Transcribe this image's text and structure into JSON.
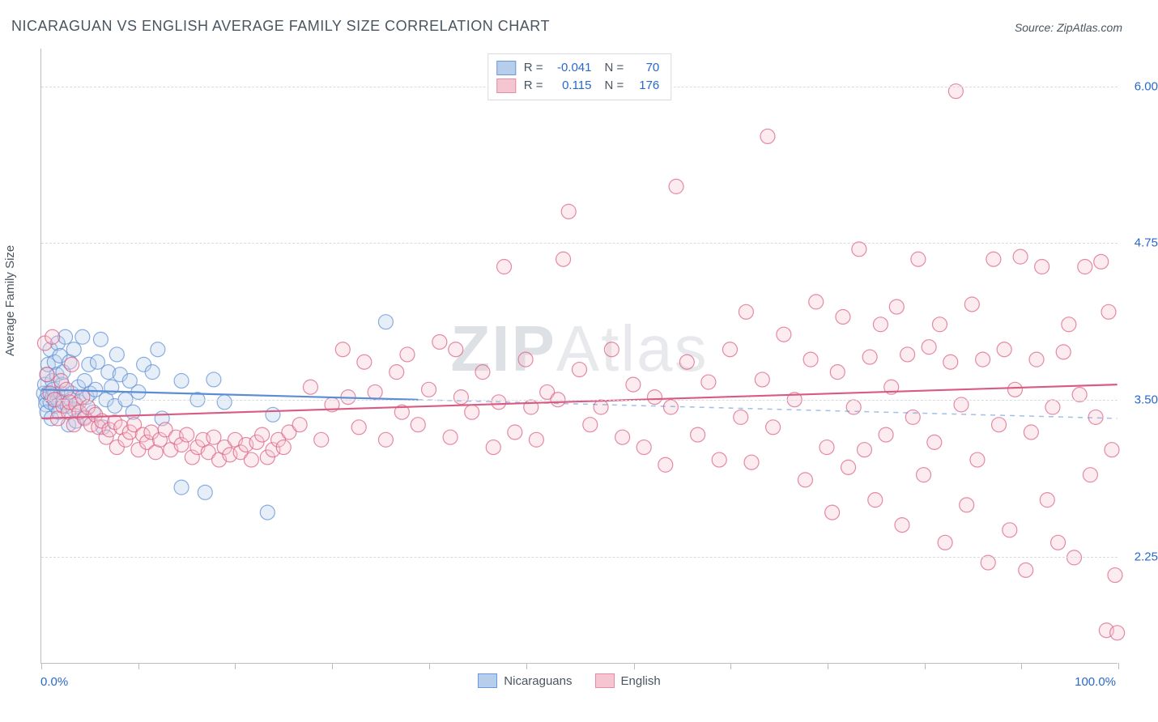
{
  "title": "NICARAGUAN VS ENGLISH AVERAGE FAMILY SIZE CORRELATION CHART",
  "source_prefix": "Source: ",
  "source_name": "ZipAtlas.com",
  "watermark": "ZIPAtlas",
  "yaxis_title": "Average Family Size",
  "x_axis": {
    "min_label": "0.0%",
    "max_label": "100.0%",
    "domain": [
      0,
      100
    ],
    "tick_positions_pct": [
      0,
      9,
      18,
      27,
      36,
      45,
      55,
      64,
      73,
      82,
      91,
      100
    ]
  },
  "y_axis": {
    "domain": [
      1.4,
      6.3
    ],
    "grid_values": [
      2.25,
      3.5,
      4.75,
      6.0
    ],
    "tick_labels": [
      "2.25",
      "3.50",
      "4.75",
      "6.00"
    ]
  },
  "legend_top": {
    "rows": [
      {
        "swatch_fill": "#b6cdec",
        "swatch_stroke": "#6a9add",
        "r_label": "R =",
        "r_value": "-0.041",
        "n_label": "N =",
        "n_value": "70"
      },
      {
        "swatch_fill": "#f5c5d2",
        "swatch_stroke": "#e88ba3",
        "r_label": "R =",
        "r_value": "0.115",
        "n_label": "N =",
        "n_value": "176"
      }
    ]
  },
  "bottom_legend": {
    "items": [
      {
        "swatch_fill": "#b6cdec",
        "swatch_stroke": "#6a9add",
        "label": "Nicaraguans"
      },
      {
        "swatch_fill": "#f5c5d2",
        "swatch_stroke": "#e88ba3",
        "label": "English"
      }
    ]
  },
  "chart": {
    "type": "scatter-correlation",
    "background_color": "#ffffff",
    "grid_color": "#d8dcdf",
    "axis_color": "#b8bec4",
    "marker_radius": 9,
    "marker_fill_opacity": 0.35,
    "marker_stroke_opacity": 0.7,
    "marker_stroke_width": 1.2,
    "trend_line_width": 2.2,
    "dash_pattern": "6,6",
    "series": [
      {
        "name": "Nicaraguans",
        "color": "#5b8dd6",
        "fill": "#b6cdec",
        "trend": {
          "y_at_xmin": 3.58,
          "y_at_xmax": 3.35,
          "solid_until_x": 35
        },
        "points": [
          [
            0.2,
            3.55
          ],
          [
            0.3,
            3.62
          ],
          [
            0.4,
            3.5
          ],
          [
            0.4,
            3.46
          ],
          [
            0.5,
            3.7
          ],
          [
            0.5,
            3.4
          ],
          [
            0.6,
            3.78
          ],
          [
            0.6,
            3.55
          ],
          [
            0.8,
            3.9
          ],
          [
            0.8,
            3.48
          ],
          [
            0.9,
            3.35
          ],
          [
            1.0,
            3.65
          ],
          [
            1.0,
            3.52
          ],
          [
            1.1,
            3.58
          ],
          [
            1.2,
            3.8
          ],
          [
            1.3,
            3.45
          ],
          [
            1.4,
            3.7
          ],
          [
            1.5,
            3.95
          ],
          [
            1.5,
            3.5
          ],
          [
            1.6,
            3.4
          ],
          [
            1.7,
            3.85
          ],
          [
            1.8,
            3.55
          ],
          [
            1.9,
            3.62
          ],
          [
            2.0,
            3.48
          ],
          [
            2.0,
            3.72
          ],
          [
            2.2,
            4.0
          ],
          [
            2.4,
            3.45
          ],
          [
            2.5,
            3.3
          ],
          [
            2.6,
            3.8
          ],
          [
            2.7,
            3.5
          ],
          [
            2.8,
            3.55
          ],
          [
            3.0,
            3.9
          ],
          [
            3.0,
            3.42
          ],
          [
            3.2,
            3.33
          ],
          [
            3.4,
            3.6
          ],
          [
            3.5,
            3.48
          ],
          [
            3.8,
            4.0
          ],
          [
            4.0,
            3.36
          ],
          [
            4.0,
            3.65
          ],
          [
            4.2,
            3.52
          ],
          [
            4.4,
            3.78
          ],
          [
            4.5,
            3.55
          ],
          [
            4.8,
            3.4
          ],
          [
            5.0,
            3.58
          ],
          [
            5.2,
            3.8
          ],
          [
            5.5,
            3.98
          ],
          [
            5.7,
            3.28
          ],
          [
            6.0,
            3.5
          ],
          [
            6.2,
            3.72
          ],
          [
            6.5,
            3.6
          ],
          [
            6.8,
            3.45
          ],
          [
            7.0,
            3.86
          ],
          [
            7.3,
            3.7
          ],
          [
            7.8,
            3.5
          ],
          [
            8.2,
            3.65
          ],
          [
            8.5,
            3.4
          ],
          [
            9.0,
            3.56
          ],
          [
            9.5,
            3.78
          ],
          [
            10.3,
            3.72
          ],
          [
            10.8,
            3.9
          ],
          [
            11.2,
            3.35
          ],
          [
            13.0,
            3.65
          ],
          [
            13.0,
            2.8
          ],
          [
            14.5,
            3.5
          ],
          [
            15.2,
            2.76
          ],
          [
            16.0,
            3.66
          ],
          [
            17.0,
            3.48
          ],
          [
            21.0,
            2.6
          ],
          [
            21.5,
            3.38
          ],
          [
            32.0,
            4.12
          ]
        ]
      },
      {
        "name": "English",
        "color": "#d95b82",
        "fill": "#f5c5d2",
        "trend": {
          "y_at_xmin": 3.35,
          "y_at_xmax": 3.62,
          "solid_until_x": 100
        },
        "points": [
          [
            0.3,
            3.95
          ],
          [
            0.5,
            3.7
          ],
          [
            0.8,
            3.55
          ],
          [
            1.0,
            4.0
          ],
          [
            1.2,
            3.5
          ],
          [
            1.5,
            3.35
          ],
          [
            1.8,
            3.65
          ],
          [
            2.0,
            3.45
          ],
          [
            2.3,
            3.58
          ],
          [
            2.5,
            3.4
          ],
          [
            2.6,
            3.48
          ],
          [
            2.8,
            3.78
          ],
          [
            3.0,
            3.3
          ],
          [
            3.2,
            3.46
          ],
          [
            3.5,
            3.4
          ],
          [
            3.8,
            3.52
          ],
          [
            4.0,
            3.35
          ],
          [
            4.3,
            3.44
          ],
          [
            4.6,
            3.3
          ],
          [
            5.0,
            3.38
          ],
          [
            5.3,
            3.28
          ],
          [
            5.6,
            3.33
          ],
          [
            6.0,
            3.2
          ],
          [
            6.3,
            3.26
          ],
          [
            6.8,
            3.32
          ],
          [
            7.0,
            3.12
          ],
          [
            7.4,
            3.28
          ],
          [
            7.8,
            3.18
          ],
          [
            8.2,
            3.24
          ],
          [
            8.6,
            3.3
          ],
          [
            9.0,
            3.1
          ],
          [
            9.4,
            3.22
          ],
          [
            9.8,
            3.16
          ],
          [
            10.2,
            3.24
          ],
          [
            10.6,
            3.08
          ],
          [
            11.0,
            3.18
          ],
          [
            11.5,
            3.26
          ],
          [
            12.0,
            3.1
          ],
          [
            12.5,
            3.2
          ],
          [
            13.0,
            3.14
          ],
          [
            13.5,
            3.22
          ],
          [
            14.0,
            3.04
          ],
          [
            14.5,
            3.12
          ],
          [
            15.0,
            3.18
          ],
          [
            15.5,
            3.08
          ],
          [
            16.0,
            3.2
          ],
          [
            16.5,
            3.02
          ],
          [
            17.0,
            3.12
          ],
          [
            17.5,
            3.06
          ],
          [
            18.0,
            3.18
          ],
          [
            18.5,
            3.08
          ],
          [
            19.0,
            3.14
          ],
          [
            19.5,
            3.02
          ],
          [
            20.0,
            3.16
          ],
          [
            20.5,
            3.22
          ],
          [
            21.0,
            3.04
          ],
          [
            21.5,
            3.1
          ],
          [
            22.0,
            3.18
          ],
          [
            22.5,
            3.12
          ],
          [
            23.0,
            3.24
          ],
          [
            24.0,
            3.3
          ],
          [
            25.0,
            3.6
          ],
          [
            26.0,
            3.18
          ],
          [
            27.0,
            3.46
          ],
          [
            28.0,
            3.9
          ],
          [
            28.5,
            3.52
          ],
          [
            29.5,
            3.28
          ],
          [
            30.0,
            3.8
          ],
          [
            31.0,
            3.56
          ],
          [
            32.0,
            3.18
          ],
          [
            33.0,
            3.72
          ],
          [
            33.5,
            3.4
          ],
          [
            34.0,
            3.86
          ],
          [
            35.0,
            3.3
          ],
          [
            36.0,
            3.58
          ],
          [
            37.0,
            3.96
          ],
          [
            38.0,
            3.2
          ],
          [
            38.5,
            3.9
          ],
          [
            39.0,
            3.52
          ],
          [
            40.0,
            3.4
          ],
          [
            41.0,
            3.72
          ],
          [
            42.0,
            3.12
          ],
          [
            42.5,
            3.48
          ],
          [
            43.0,
            4.56
          ],
          [
            44.0,
            3.24
          ],
          [
            45.0,
            3.82
          ],
          [
            45.5,
            3.44
          ],
          [
            46.0,
            3.18
          ],
          [
            47.0,
            3.56
          ],
          [
            48.0,
            3.5
          ],
          [
            48.5,
            4.62
          ],
          [
            49.0,
            5.0
          ],
          [
            50.0,
            3.74
          ],
          [
            51.0,
            3.3
          ],
          [
            52.0,
            3.44
          ],
          [
            53.0,
            3.9
          ],
          [
            54.0,
            3.2
          ],
          [
            55.0,
            3.62
          ],
          [
            56.0,
            3.12
          ],
          [
            57.0,
            3.52
          ],
          [
            58.0,
            2.98
          ],
          [
            58.5,
            3.44
          ],
          [
            59.0,
            5.2
          ],
          [
            60.0,
            3.8
          ],
          [
            61.0,
            3.22
          ],
          [
            62.0,
            3.64
          ],
          [
            63.0,
            3.02
          ],
          [
            64.0,
            3.9
          ],
          [
            65.0,
            3.36
          ],
          [
            65.5,
            4.2
          ],
          [
            66.0,
            3.0
          ],
          [
            67.0,
            3.66
          ],
          [
            67.5,
            5.6
          ],
          [
            68.0,
            3.28
          ],
          [
            69.0,
            4.02
          ],
          [
            70.0,
            3.5
          ],
          [
            71.0,
            2.86
          ],
          [
            71.5,
            3.82
          ],
          [
            72.0,
            4.28
          ],
          [
            73.0,
            3.12
          ],
          [
            73.5,
            2.6
          ],
          [
            74.0,
            3.72
          ],
          [
            74.5,
            4.16
          ],
          [
            75.0,
            2.96
          ],
          [
            75.5,
            3.44
          ],
          [
            76.0,
            4.7
          ],
          [
            76.5,
            3.1
          ],
          [
            77.0,
            3.84
          ],
          [
            77.5,
            2.7
          ],
          [
            78.0,
            4.1
          ],
          [
            78.5,
            3.22
          ],
          [
            79.0,
            3.6
          ],
          [
            79.5,
            4.24
          ],
          [
            80.0,
            2.5
          ],
          [
            80.5,
            3.86
          ],
          [
            81.0,
            3.36
          ],
          [
            81.5,
            4.62
          ],
          [
            82.0,
            2.9
          ],
          [
            82.5,
            3.92
          ],
          [
            83.0,
            3.16
          ],
          [
            83.5,
            4.1
          ],
          [
            84.0,
            2.36
          ],
          [
            84.5,
            3.8
          ],
          [
            85.0,
            5.96
          ],
          [
            85.5,
            3.46
          ],
          [
            86.0,
            2.66
          ],
          [
            86.5,
            4.26
          ],
          [
            87.0,
            3.02
          ],
          [
            87.5,
            3.82
          ],
          [
            88.0,
            2.2
          ],
          [
            88.5,
            4.62
          ],
          [
            89.0,
            3.3
          ],
          [
            89.5,
            3.9
          ],
          [
            90.0,
            2.46
          ],
          [
            90.5,
            3.58
          ],
          [
            91.0,
            4.64
          ],
          [
            91.5,
            2.14
          ],
          [
            92.0,
            3.24
          ],
          [
            92.5,
            3.82
          ],
          [
            93.0,
            4.56
          ],
          [
            93.5,
            2.7
          ],
          [
            94.0,
            3.44
          ],
          [
            94.5,
            2.36
          ],
          [
            95.0,
            3.88
          ],
          [
            95.5,
            4.1
          ],
          [
            96.0,
            2.24
          ],
          [
            96.5,
            3.54
          ],
          [
            97.0,
            4.56
          ],
          [
            97.5,
            2.9
          ],
          [
            98.0,
            3.36
          ],
          [
            98.5,
            4.6
          ],
          [
            99.0,
            1.66
          ],
          [
            99.2,
            4.2
          ],
          [
            99.5,
            3.1
          ],
          [
            99.8,
            2.1
          ],
          [
            100.0,
            1.64
          ]
        ]
      }
    ]
  }
}
